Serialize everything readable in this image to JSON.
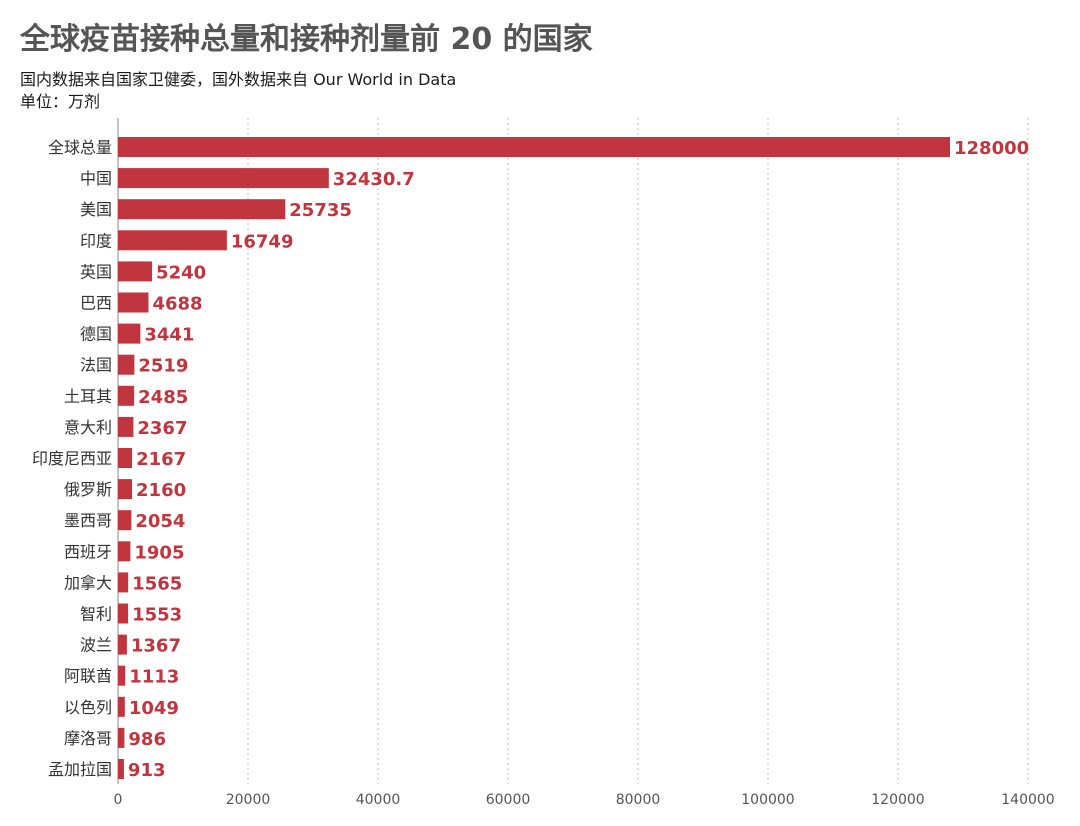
{
  "chart_data": {
    "type": "bar",
    "orientation": "horizontal",
    "title": "全球疫苗接种总量和接种剂量前 20 的国家",
    "subtitle": "国内数据来自国家卫健委，国外数据来自 Our World in Data",
    "unit": "单位：万剂",
    "categories": [
      "全球总量",
      "中国",
      "美国",
      "印度",
      "英国",
      "巴西",
      "德国",
      "法国",
      "土耳其",
      "意大利",
      "印度尼西亚",
      "俄罗斯",
      "墨西哥",
      "西班牙",
      "加拿大",
      "智利",
      "波兰",
      "阿联酋",
      "以色列",
      "摩洛哥",
      "孟加拉国"
    ],
    "values": [
      128000,
      32430.7,
      25735,
      16749,
      5240,
      4688,
      3441,
      2519,
      2485,
      2367,
      2167,
      2160,
      2054,
      1905,
      1565,
      1553,
      1367,
      1113,
      1049,
      986,
      913
    ],
    "value_labels": [
      "128000",
      "32430.7",
      "25735",
      "16749",
      "5240",
      "4688",
      "3441",
      "2519",
      "2485",
      "2367",
      "2167",
      "2160",
      "2054",
      "1905",
      "1565",
      "1553",
      "1367",
      "1113",
      "1049",
      "986",
      "913"
    ],
    "xlim": [
      0,
      140000
    ],
    "x_ticks": [
      "0",
      "20000",
      "40000",
      "60000",
      "80000",
      "100000",
      "120000",
      "140000"
    ],
    "x_tick_values": [
      0,
      20000,
      40000,
      60000,
      80000,
      100000,
      120000,
      140000
    ],
    "grid": "vertical-dotted",
    "bar_color": "#c0353e"
  }
}
